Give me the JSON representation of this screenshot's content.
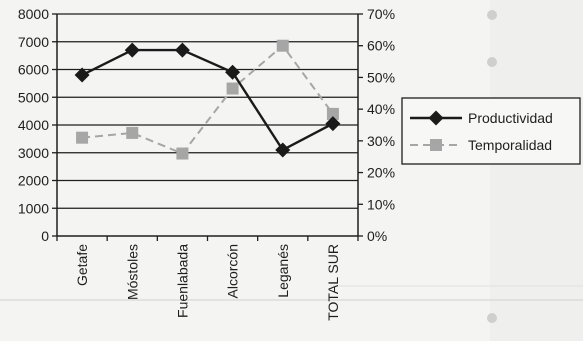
{
  "chart_data": {
    "type": "line",
    "categories": [
      "Getafe",
      "Móstoles",
      "Fuenlabada",
      "Alcorcón",
      "Leganés",
      "TOTAL SUR"
    ],
    "left_axis": {
      "range": [
        0,
        8000
      ],
      "ticks": [
        0,
        1000,
        2000,
        3000,
        4000,
        5000,
        6000,
        7000,
        8000
      ],
      "tick_labels": [
        "0",
        "1000",
        "2000",
        "3000",
        "4000",
        "5000",
        "6000",
        "7000",
        "8000"
      ]
    },
    "right_axis": {
      "range": [
        0,
        0.7
      ],
      "ticks": [
        0,
        0.1,
        0.2,
        0.3,
        0.4,
        0.5,
        0.6,
        0.7
      ],
      "tick_labels": [
        "0%",
        "10%",
        "20%",
        "30%",
        "40%",
        "50%",
        "60%",
        "70%"
      ]
    },
    "series": [
      {
        "name": "Productividad",
        "axis": "left",
        "values": [
          5800,
          6700,
          6700,
          5900,
          3100,
          4050
        ],
        "color": "#1a1a1a",
        "marker": "diamond",
        "line_style": "solid"
      },
      {
        "name": "Temporalidad",
        "axis": "right",
        "values": [
          0.31,
          0.325,
          0.26,
          0.465,
          0.6,
          0.385
        ],
        "color": "#a6a6a6",
        "marker": "square",
        "line_style": "dashed"
      }
    ],
    "grid": "horizontal",
    "legend": "right"
  }
}
